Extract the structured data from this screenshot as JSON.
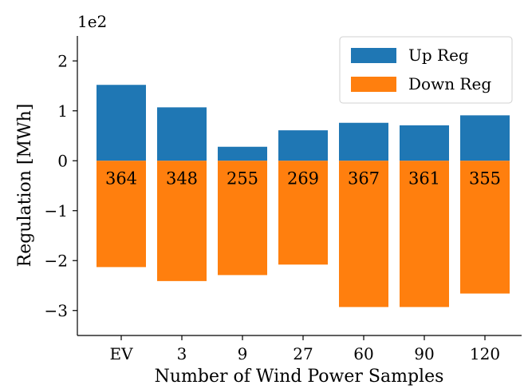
{
  "chart_data": {
    "type": "bar",
    "stacked_diverging": true,
    "categories": [
      "EV",
      "3",
      "9",
      "27",
      "60",
      "90",
      "120"
    ],
    "series": [
      {
        "name": "Up Reg",
        "color": "#1f77b4",
        "values": [
          1.52,
          1.07,
          0.28,
          0.61,
          0.76,
          0.71,
          0.91
        ]
      },
      {
        "name": "Down Reg",
        "color": "#ff7f0e",
        "values": [
          -2.13,
          -2.41,
          -2.29,
          -2.08,
          -2.93,
          -2.93,
          -2.66
        ]
      }
    ],
    "bar_labels": [
      "364",
      "348",
      "255",
      "269",
      "367",
      "361",
      "355"
    ],
    "xlabel": "Number of Wind Power Samples",
    "ylabel": "Regulation [MWh]",
    "ylim": [
      -3.5,
      2.5
    ],
    "yticks": [
      -3,
      -2,
      -1,
      0,
      1,
      2
    ],
    "ytick_labels": [
      "−3",
      "−2",
      "−1",
      "0",
      "1",
      "2"
    ],
    "y_multiplier": "1e2",
    "legend_position": "top-right",
    "grid": false
  }
}
